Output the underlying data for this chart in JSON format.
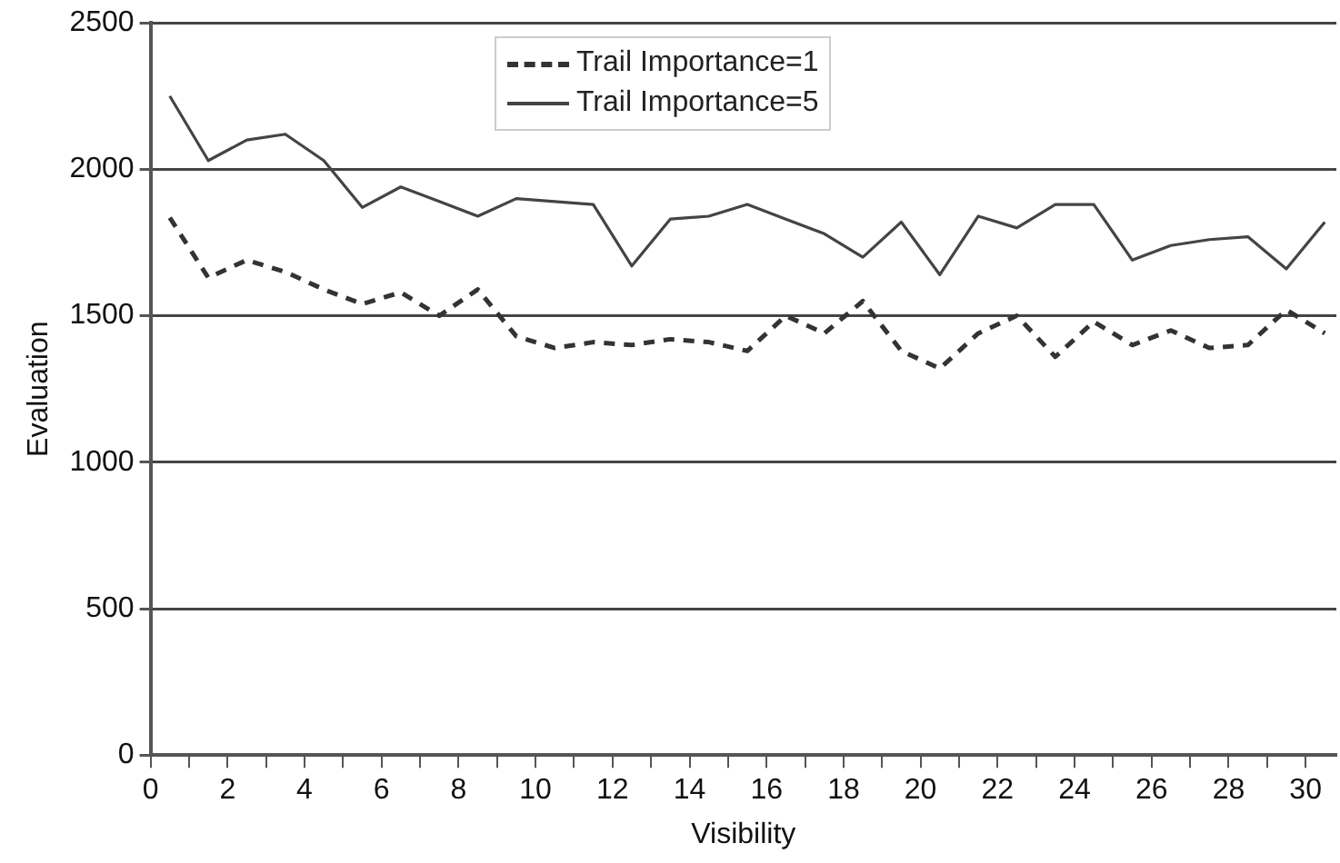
{
  "chart_data": {
    "type": "line",
    "xlabel": "Visibility",
    "ylabel": "Evaluation",
    "xlim": [
      0,
      30.8
    ],
    "xticks": [
      0,
      {
        "value": 1,
        "label": null
      },
      2,
      {
        "value": 3,
        "label": null
      },
      4,
      {
        "value": 5,
        "label": null
      },
      6,
      {
        "value": 7,
        "label": null
      },
      8,
      {
        "value": 9,
        "label": null
      },
      10,
      {
        "value": 11,
        "label": null
      },
      12,
      {
        "value": 13,
        "label": null
      },
      14,
      {
        "value": 15,
        "label": null
      },
      16,
      {
        "value": 17,
        "label": null
      },
      18,
      {
        "value": 19,
        "label": null
      },
      20,
      {
        "value": 21,
        "label": null
      },
      22,
      {
        "value": 23,
        "label": null
      },
      24,
      {
        "value": 25,
        "label": null
      },
      26,
      {
        "value": 27,
        "label": null
      },
      28,
      {
        "value": 29,
        "label": null
      },
      30
    ],
    "ylim": [
      0,
      2500
    ],
    "yticks": [
      0,
      500,
      1000,
      1500,
      2000,
      2500
    ],
    "x": [
      0.5,
      1.5,
      2.5,
      3.5,
      4.5,
      5.5,
      6.5,
      7.5,
      8.5,
      9.5,
      10.5,
      11.5,
      12.5,
      13.5,
      14.5,
      15.5,
      16.5,
      17.5,
      18.5,
      19.5,
      20.5,
      21.5,
      22.5,
      23.5,
      24.5,
      25.5,
      26.5,
      27.5,
      28.5,
      29.5,
      30.5
    ],
    "series": [
      {
        "name": "Trail Importance=1",
        "color": "#333333",
        "line_style": "dashed",
        "values": [
          1835,
          1630,
          1690,
          1650,
          1590,
          1540,
          1580,
          1500,
          1590,
          1430,
          1390,
          1410,
          1400,
          1420,
          1410,
          1380,
          1500,
          1440,
          1550,
          1380,
          1320,
          1440,
          1500,
          1360,
          1480,
          1400,
          1450,
          1390,
          1400,
          1520,
          1440
        ]
      },
      {
        "name": "Trail Importance=5",
        "color": "#444444",
        "line_style": "solid",
        "values": [
          2250,
          2030,
          2100,
          2120,
          2030,
          1870,
          1940,
          1890,
          1840,
          1900,
          1890,
          1880,
          1670,
          1830,
          1840,
          1880,
          1830,
          1780,
          1700,
          1820,
          1640,
          1840,
          1800,
          1880,
          1880,
          1690,
          1740,
          1760,
          1770,
          1660,
          1820
        ]
      }
    ],
    "grid": "y",
    "legend": "top",
    "marker": "none"
  }
}
